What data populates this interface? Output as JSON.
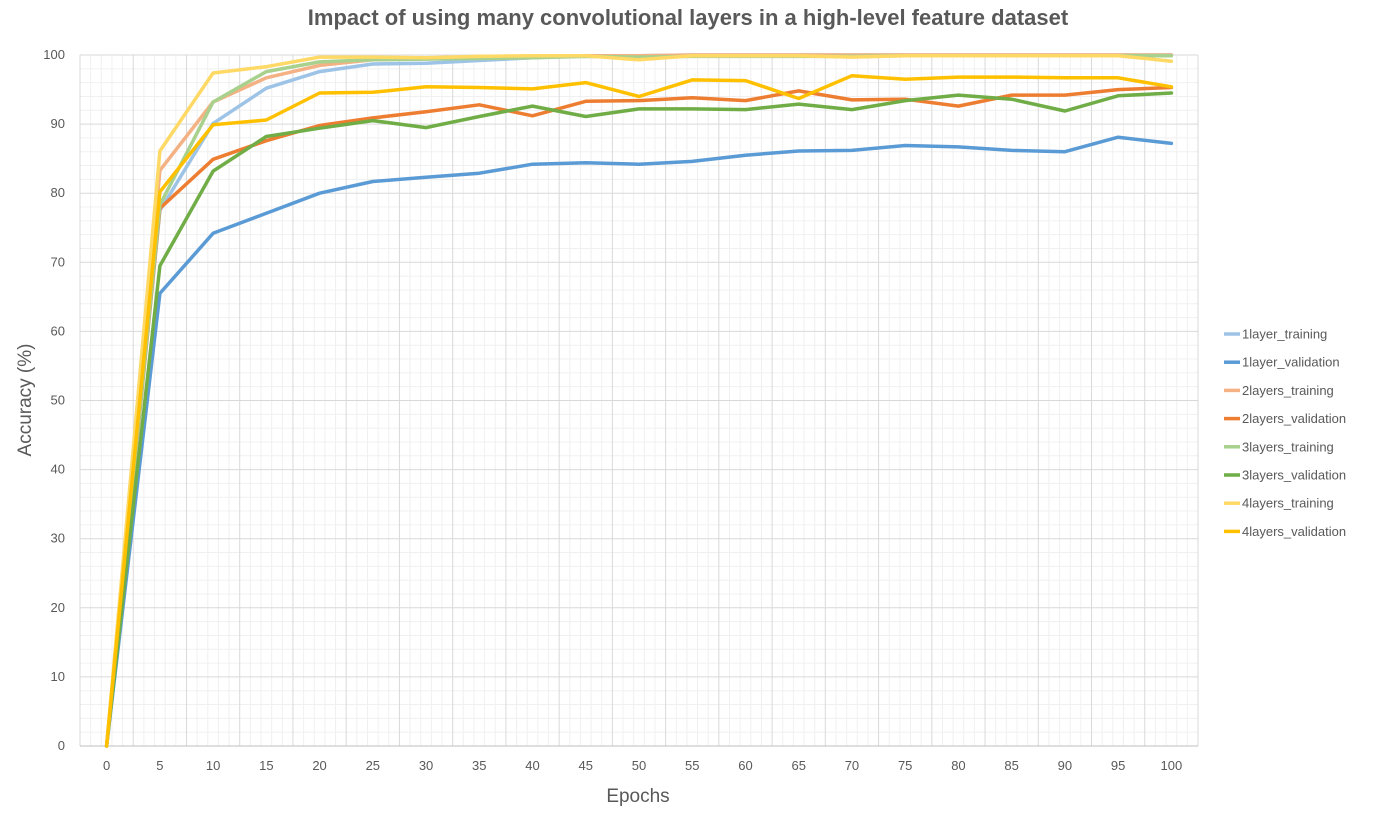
{
  "chart_data": {
    "type": "line",
    "title": "Impact of using many convolutional layers in a high-level feature dataset",
    "xlabel": "Epochs",
    "ylabel": "Accuracy (%)",
    "x": [
      0,
      5,
      10,
      15,
      20,
      25,
      30,
      35,
      40,
      45,
      50,
      55,
      60,
      65,
      70,
      75,
      80,
      85,
      90,
      95,
      100
    ],
    "xlim": [
      0,
      100
    ],
    "ylim": [
      0,
      100
    ],
    "yticks": [
      0,
      10,
      20,
      30,
      40,
      50,
      60,
      70,
      80,
      90,
      100
    ],
    "grid": true,
    "minor_grid": true,
    "legend_position": "right",
    "series": [
      {
        "name": "1layer_training",
        "color": "#9DC3E6",
        "values": [
          0,
          77.5,
          90.1,
          95.2,
          97.6,
          98.7,
          98.8,
          99.2,
          99.6,
          99.9,
          99.9,
          100,
          100,
          100,
          100,
          100,
          100,
          100,
          100,
          100,
          100
        ]
      },
      {
        "name": "1layer_validation",
        "color": "#5B9BD5",
        "values": [
          0,
          65.5,
          74.2,
          77.1,
          80.0,
          81.7,
          82.3,
          82.9,
          84.2,
          84.4,
          84.2,
          84.6,
          85.5,
          86.1,
          86.2,
          86.9,
          86.7,
          86.2,
          86.0,
          88.1,
          87.2
        ]
      },
      {
        "name": "2layers_training",
        "color": "#F4B183",
        "values": [
          0,
          83.3,
          93.2,
          96.7,
          98.5,
          99.3,
          99.5,
          99.8,
          99.8,
          99.9,
          99.9,
          100,
          100,
          100,
          100,
          100,
          100,
          100,
          100,
          100,
          100
        ]
      },
      {
        "name": "2layers_validation",
        "color": "#ED7D31",
        "values": [
          0,
          77.8,
          84.9,
          87.6,
          89.8,
          90.9,
          91.8,
          92.8,
          91.2,
          93.3,
          93.4,
          93.8,
          93.4,
          94.8,
          93.5,
          93.6,
          92.6,
          94.2,
          94.2,
          95.0,
          95.3
        ]
      },
      {
        "name": "3layers_training",
        "color": "#A9D18E",
        "values": [
          0,
          78.3,
          93.2,
          97.6,
          99.0,
          99.3,
          99.4,
          99.5,
          99.6,
          99.8,
          99.7,
          99.8,
          99.8,
          99.8,
          99.8,
          99.9,
          99.9,
          99.9,
          99.9,
          99.9,
          99.9
        ]
      },
      {
        "name": "3layers_validation",
        "color": "#70AD47",
        "values": [
          0,
          69.5,
          83.2,
          88.2,
          89.4,
          90.5,
          89.5,
          91.1,
          92.6,
          91.1,
          92.2,
          92.2,
          92.1,
          92.9,
          92.1,
          93.4,
          94.2,
          93.6,
          91.9,
          94.1,
          94.5
        ]
      },
      {
        "name": "4layers_training",
        "color": "#FFD966",
        "values": [
          0,
          86.1,
          97.4,
          98.3,
          99.7,
          99.7,
          99.6,
          99.8,
          99.9,
          99.9,
          99.3,
          99.9,
          99.9,
          99.9,
          99.7,
          99.9,
          99.9,
          99.9,
          99.9,
          99.9,
          99.1
        ]
      },
      {
        "name": "4layers_validation",
        "color": "#FFC000",
        "values": [
          0,
          80.2,
          89.9,
          90.6,
          94.5,
          94.6,
          95.4,
          95.3,
          95.1,
          96.0,
          94.0,
          96.4,
          96.3,
          93.7,
          97.0,
          96.5,
          96.8,
          96.8,
          96.7,
          96.7,
          95.4
        ]
      }
    ]
  }
}
